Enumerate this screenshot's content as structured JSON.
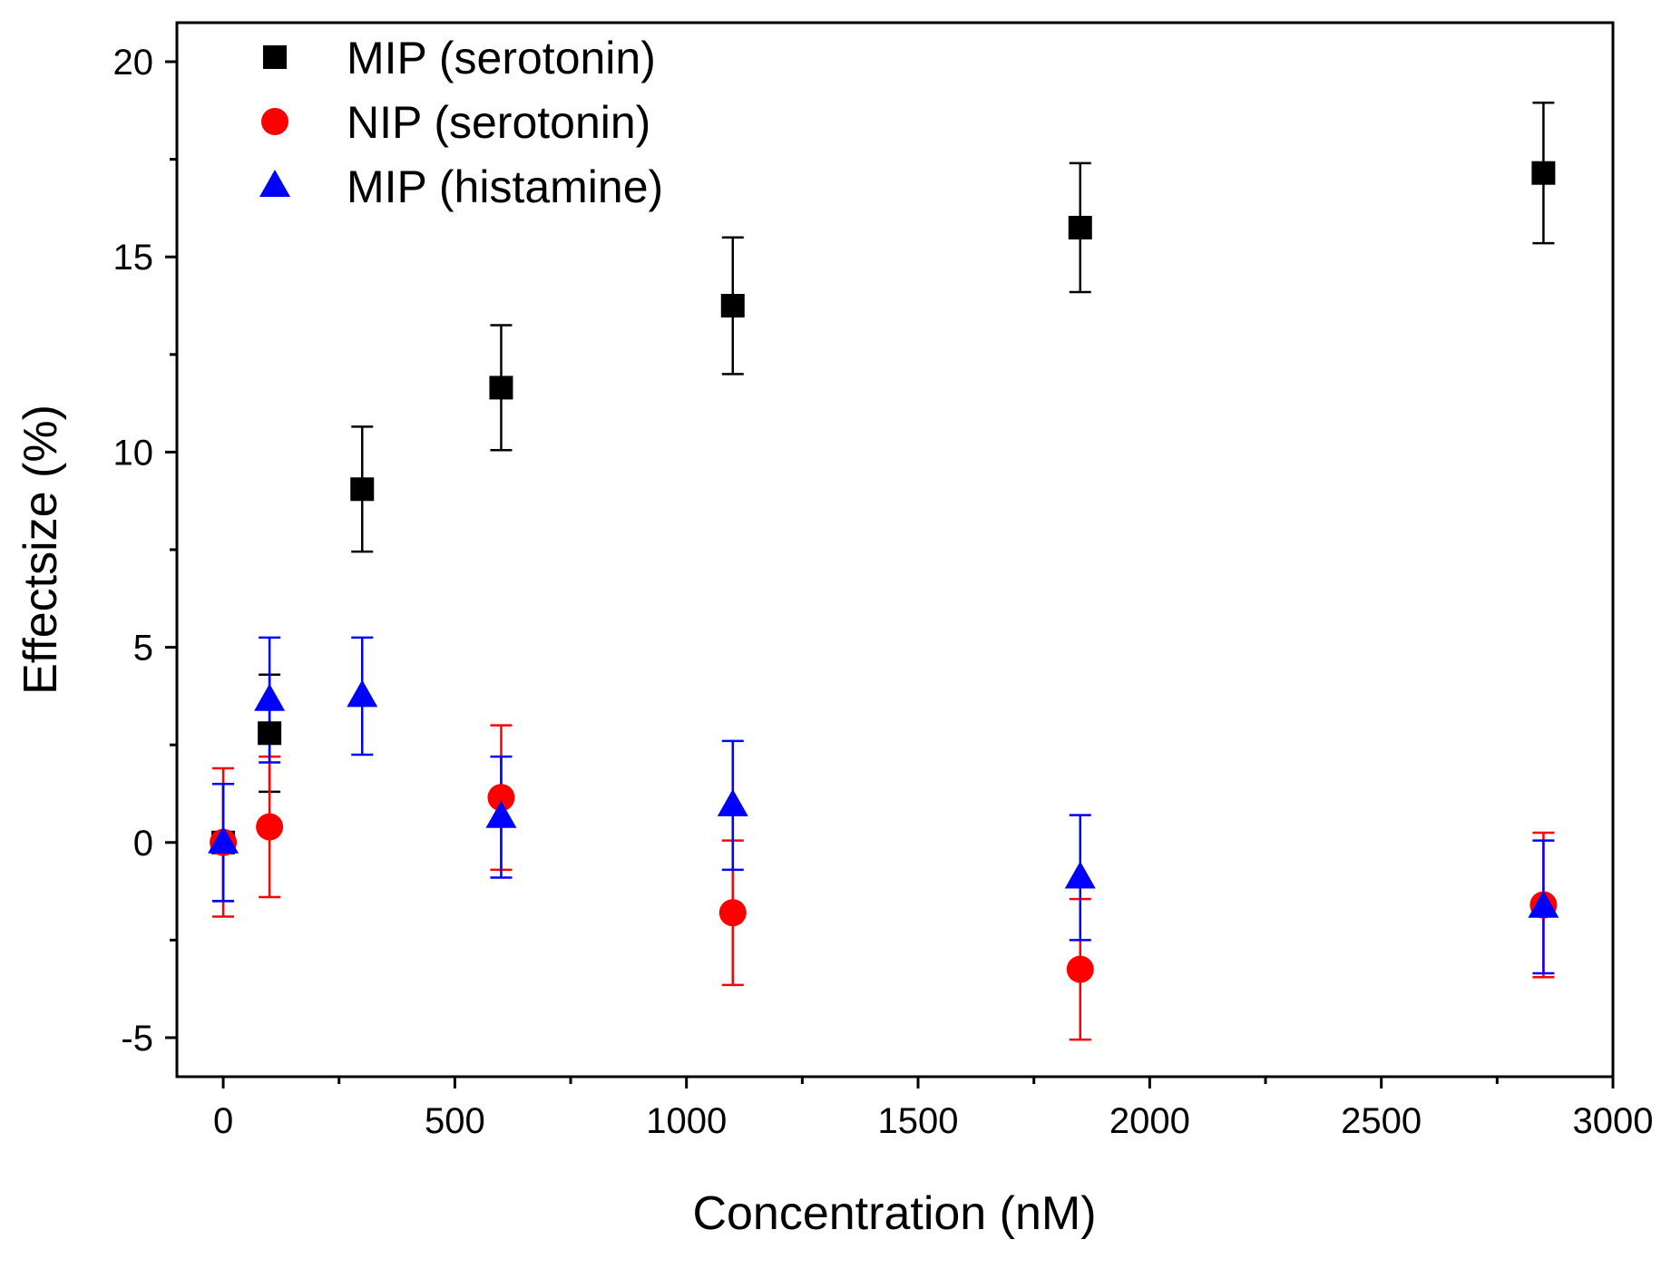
{
  "chart_data": {
    "type": "scatter",
    "title": "",
    "xlabel": "Concentration (nM)",
    "ylabel": "Effectsize (%)",
    "xlim": [
      -100,
      3000
    ],
    "ylim": [
      -6,
      21
    ],
    "x_ticks": [
      0,
      500,
      1000,
      1500,
      2000,
      2500,
      3000
    ],
    "x_tick_labels": [
      "0",
      "500",
      "1000",
      "1500",
      "2000",
      "2500",
      "3000"
    ],
    "x_minor_ticks": [
      250,
      750,
      1250,
      1750,
      2250,
      2750
    ],
    "y_ticks": [
      -5,
      0,
      5,
      10,
      15,
      20
    ],
    "y_tick_labels": [
      "-5",
      "0",
      "5",
      "10",
      "15",
      "20"
    ],
    "y_minor_ticks": [
      -2.5,
      2.5,
      7.5,
      12.5,
      17.5
    ],
    "grid": false,
    "legend_position": "top-left",
    "series": [
      {
        "name": "MIP (serotonin)",
        "marker": "square",
        "color": "#000000",
        "x": [
          0,
          100,
          300,
          600,
          1100,
          1850,
          2850
        ],
        "y": [
          0,
          2.8,
          9.05,
          11.65,
          13.75,
          15.75,
          17.15
        ],
        "err": [
          1.5,
          1.5,
          1.6,
          1.6,
          1.75,
          1.65,
          1.8
        ]
      },
      {
        "name": "NIP (serotonin)",
        "marker": "circle",
        "color": "#ff0000",
        "x": [
          0,
          100,
          600,
          1100,
          1850,
          2850
        ],
        "y": [
          0,
          0.4,
          1.15,
          -1.8,
          -3.25,
          -1.6
        ],
        "err": [
          1.9,
          1.8,
          1.85,
          1.85,
          1.8,
          1.85
        ]
      },
      {
        "name": "MIP (histamine)",
        "marker": "triangle",
        "color": "#0000ff",
        "x": [
          0,
          100,
          300,
          600,
          1100,
          1850,
          2850
        ],
        "y": [
          0,
          3.65,
          3.75,
          0.65,
          0.95,
          -0.9,
          -1.65
        ],
        "err": [
          1.5,
          1.6,
          1.5,
          1.55,
          1.65,
          1.6,
          1.7
        ]
      }
    ]
  }
}
